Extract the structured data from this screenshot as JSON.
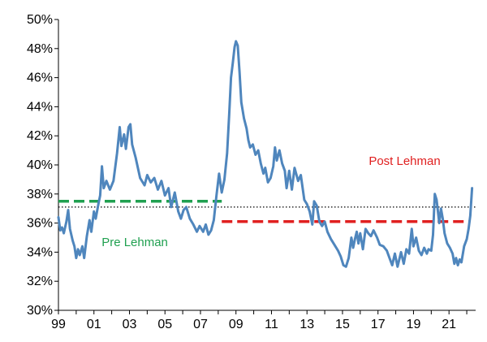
{
  "chart_data": {
    "type": "line",
    "title": "",
    "xlabel": "",
    "ylabel": "",
    "xlim": [
      1999,
      2022.5
    ],
    "ylim": [
      30,
      50
    ],
    "grid": false,
    "x_ticks": [
      1999,
      2001,
      2003,
      2005,
      2007,
      2009,
      2011,
      2013,
      2015,
      2017,
      2019,
      2021
    ],
    "x_tick_labels": [
      "99",
      "01",
      "03",
      "05",
      "07",
      "09",
      "11",
      "13",
      "15",
      "17",
      "19",
      "21"
    ],
    "y_ticks": [
      30,
      32,
      34,
      36,
      38,
      40,
      42,
      44,
      46,
      48,
      50
    ],
    "y_tick_labels": [
      "30%",
      "32%",
      "34%",
      "36%",
      "38%",
      "40%",
      "42%",
      "44%",
      "46%",
      "48%",
      "50%"
    ],
    "series": [
      {
        "color": "#4f86bd",
        "points": [
          [
            1999.0,
            36.4
          ],
          [
            1999.1,
            35.5
          ],
          [
            1999.2,
            35.7
          ],
          [
            1999.3,
            35.3
          ],
          [
            1999.45,
            36.1
          ],
          [
            1999.55,
            36.9
          ],
          [
            1999.65,
            35.6
          ],
          [
            1999.8,
            34.8
          ],
          [
            1999.9,
            34.4
          ],
          [
            2000.0,
            33.6
          ],
          [
            2000.1,
            34.2
          ],
          [
            2000.2,
            33.8
          ],
          [
            2000.35,
            34.4
          ],
          [
            2000.45,
            33.6
          ],
          [
            2000.6,
            35.1
          ],
          [
            2000.75,
            36.2
          ],
          [
            2000.85,
            35.4
          ],
          [
            2001.0,
            36.8
          ],
          [
            2001.1,
            36.3
          ],
          [
            2001.25,
            37.3
          ],
          [
            2001.35,
            37.9
          ],
          [
            2001.45,
            39.9
          ],
          [
            2001.55,
            38.4
          ],
          [
            2001.7,
            38.9
          ],
          [
            2001.9,
            38.3
          ],
          [
            2002.1,
            38.9
          ],
          [
            2002.3,
            40.8
          ],
          [
            2002.45,
            42.6
          ],
          [
            2002.55,
            41.3
          ],
          [
            2002.7,
            42.1
          ],
          [
            2002.8,
            41.1
          ],
          [
            2002.95,
            42.6
          ],
          [
            2003.05,
            42.8
          ],
          [
            2003.15,
            41.4
          ],
          [
            2003.35,
            40.5
          ],
          [
            2003.6,
            39.1
          ],
          [
            2003.85,
            38.6
          ],
          [
            2004.0,
            39.3
          ],
          [
            2004.2,
            38.8
          ],
          [
            2004.4,
            39.1
          ],
          [
            2004.6,
            38.3
          ],
          [
            2004.8,
            38.9
          ],
          [
            2005.0,
            37.9
          ],
          [
            2005.2,
            38.4
          ],
          [
            2005.35,
            37.1
          ],
          [
            2005.55,
            38.1
          ],
          [
            2005.75,
            36.8
          ],
          [
            2005.9,
            36.3
          ],
          [
            2006.05,
            36.9
          ],
          [
            2006.2,
            37.1
          ],
          [
            2006.4,
            36.3
          ],
          [
            2006.6,
            35.9
          ],
          [
            2006.8,
            35.4
          ],
          [
            2006.95,
            35.8
          ],
          [
            2007.15,
            35.4
          ],
          [
            2007.3,
            35.9
          ],
          [
            2007.45,
            35.2
          ],
          [
            2007.6,
            35.5
          ],
          [
            2007.75,
            36.2
          ],
          [
            2007.9,
            37.9
          ],
          [
            2008.05,
            39.4
          ],
          [
            2008.2,
            38.1
          ],
          [
            2008.35,
            39.0
          ],
          [
            2008.5,
            40.8
          ],
          [
            2008.62,
            43.5
          ],
          [
            2008.72,
            46.0
          ],
          [
            2008.82,
            47.0
          ],
          [
            2008.92,
            48.1
          ],
          [
            2009.0,
            48.5
          ],
          [
            2009.1,
            48.2
          ],
          [
            2009.2,
            46.4
          ],
          [
            2009.3,
            44.3
          ],
          [
            2009.45,
            43.2
          ],
          [
            2009.6,
            42.5
          ],
          [
            2009.7,
            41.7
          ],
          [
            2009.8,
            41.2
          ],
          [
            2009.95,
            41.4
          ],
          [
            2010.1,
            40.7
          ],
          [
            2010.25,
            41.0
          ],
          [
            2010.4,
            40.1
          ],
          [
            2010.55,
            39.4
          ],
          [
            2010.65,
            39.8
          ],
          [
            2010.8,
            38.8
          ],
          [
            2010.95,
            39.1
          ],
          [
            2011.1,
            39.9
          ],
          [
            2011.2,
            41.2
          ],
          [
            2011.3,
            40.3
          ],
          [
            2011.45,
            41.0
          ],
          [
            2011.6,
            40.1
          ],
          [
            2011.75,
            39.6
          ],
          [
            2011.85,
            38.4
          ],
          [
            2012.0,
            39.6
          ],
          [
            2012.15,
            38.3
          ],
          [
            2012.3,
            39.8
          ],
          [
            2012.5,
            38.9
          ],
          [
            2012.65,
            39.3
          ],
          [
            2012.85,
            37.6
          ],
          [
            2013.0,
            37.3
          ],
          [
            2013.15,
            36.8
          ],
          [
            2013.3,
            35.9
          ],
          [
            2013.4,
            37.5
          ],
          [
            2013.55,
            37.2
          ],
          [
            2013.7,
            36.1
          ],
          [
            2013.85,
            35.8
          ],
          [
            2014.0,
            36.1
          ],
          [
            2014.15,
            35.4
          ],
          [
            2014.35,
            34.9
          ],
          [
            2014.55,
            34.5
          ],
          [
            2014.75,
            34.1
          ],
          [
            2014.9,
            33.7
          ],
          [
            2015.05,
            33.1
          ],
          [
            2015.2,
            33.0
          ],
          [
            2015.35,
            33.6
          ],
          [
            2015.5,
            35.0
          ],
          [
            2015.6,
            34.3
          ],
          [
            2015.7,
            34.9
          ],
          [
            2015.8,
            35.4
          ],
          [
            2015.9,
            34.6
          ],
          [
            2016.0,
            35.3
          ],
          [
            2016.15,
            34.2
          ],
          [
            2016.3,
            35.6
          ],
          [
            2016.45,
            35.3
          ],
          [
            2016.6,
            35.1
          ],
          [
            2016.75,
            35.5
          ],
          [
            2016.95,
            35.0
          ],
          [
            2017.1,
            34.5
          ],
          [
            2017.3,
            34.4
          ],
          [
            2017.5,
            34.1
          ],
          [
            2017.65,
            33.6
          ],
          [
            2017.8,
            33.1
          ],
          [
            2017.95,
            33.9
          ],
          [
            2018.1,
            33.0
          ],
          [
            2018.3,
            34.0
          ],
          [
            2018.45,
            33.2
          ],
          [
            2018.6,
            34.2
          ],
          [
            2018.75,
            33.9
          ],
          [
            2018.9,
            35.6
          ],
          [
            2019.0,
            34.4
          ],
          [
            2019.15,
            35.0
          ],
          [
            2019.3,
            34.1
          ],
          [
            2019.45,
            33.8
          ],
          [
            2019.6,
            34.3
          ],
          [
            2019.75,
            33.9
          ],
          [
            2019.85,
            34.2
          ],
          [
            2020.0,
            34.1
          ],
          [
            2020.1,
            35.2
          ],
          [
            2020.2,
            38.0
          ],
          [
            2020.3,
            37.6
          ],
          [
            2020.45,
            36.0
          ],
          [
            2020.55,
            37.0
          ],
          [
            2020.65,
            36.3
          ],
          [
            2020.75,
            35.3
          ],
          [
            2020.9,
            34.6
          ],
          [
            2021.05,
            34.3
          ],
          [
            2021.2,
            33.9
          ],
          [
            2021.3,
            33.2
          ],
          [
            2021.4,
            33.6
          ],
          [
            2021.5,
            33.1
          ],
          [
            2021.6,
            33.5
          ],
          [
            2021.7,
            33.3
          ],
          [
            2021.85,
            34.4
          ],
          [
            2022.0,
            34.9
          ],
          [
            2022.1,
            35.6
          ],
          [
            2022.2,
            36.5
          ],
          [
            2022.3,
            38.4
          ]
        ]
      }
    ],
    "reference_lines": [
      {
        "kind": "average",
        "label": "Pre Lehman",
        "y": 37.5,
        "x_start": 1999.0,
        "x_end": 2008.2,
        "color": "#20a050",
        "style": "dashed"
      },
      {
        "kind": "average",
        "label": "Post Lehman",
        "y": 36.1,
        "x_start": 2008.2,
        "x_end": 2022.2,
        "color": "#e02020",
        "style": "dashed"
      },
      {
        "kind": "overall-average",
        "y": 37.1,
        "x_start": 1999.0,
        "x_end": 2022.5,
        "color": "#000000",
        "style": "dotted"
      }
    ],
    "annotations": [
      {
        "text": "Pre Lehman",
        "color": "#20a050",
        "near": "below green dashed line"
      },
      {
        "text": "Post Lehman",
        "color": "#e02020",
        "near": "above red dashed line, right"
      }
    ]
  }
}
